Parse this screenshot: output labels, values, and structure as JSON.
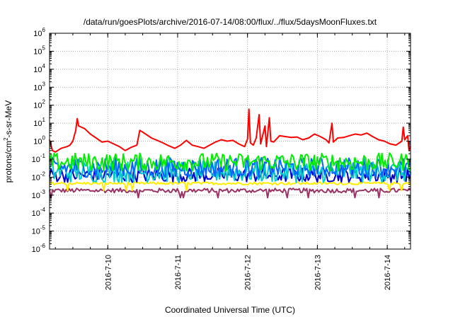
{
  "chart_data": {
    "type": "line",
    "title": "/data/run/goesPlots/archive/2016-07-14/08:00/flux/../flux/5daysMoonFluxes.txt",
    "xlabel": "Coordinated Universal Time (UTC)",
    "ylabel": "protons/cm2-s-sr-MeV",
    "ylabel_parts": {
      "prefix": "protons/cm",
      "sup": "2",
      "suffix": "-s-sr-MeV"
    },
    "xscale": "time",
    "yscale": "log",
    "xlim": [
      "2016-07-09 04:00",
      "2016-07-14 08:00"
    ],
    "ylim": [
      1e-06,
      1000000.0
    ],
    "grid": true,
    "x_ticks": [
      "2016-7-10",
      "2016-7-11",
      "2016-7-12",
      "2016-7-13",
      "2016-7-14"
    ],
    "x_tick_values": [
      "2016-07-10 00:00",
      "2016-07-11 00:00",
      "2016-07-12 00:00",
      "2016-07-13 00:00",
      "2016-07-14 00:00"
    ],
    "y_ticks": [
      {
        "base": "10",
        "exp": "-6"
      },
      {
        "base": "10",
        "exp": "-5"
      },
      {
        "base": "10",
        "exp": "-4"
      },
      {
        "base": "10",
        "exp": "-3"
      },
      {
        "base": "10",
        "exp": "-2"
      },
      {
        "base": "10",
        "exp": "-1"
      },
      {
        "base": "10",
        "exp": "0"
      },
      {
        "base": "10",
        "exp": "1"
      },
      {
        "base": "10",
        "exp": "2"
      },
      {
        "base": "10",
        "exp": "3"
      },
      {
        "base": "10",
        "exp": "4"
      },
      {
        "base": "10",
        "exp": "5"
      },
      {
        "base": "10",
        "exp": "6"
      }
    ],
    "series": [
      {
        "color": "#ff0000",
        "points": [
          [
            "2016-07-09 04:00",
            1.2
          ],
          [
            "2016-07-09 05:00",
            0.3
          ],
          [
            "2016-07-09 06:00",
            0.25
          ],
          [
            "2016-07-09 08:00",
            0.4
          ],
          [
            "2016-07-09 10:00",
            0.5
          ],
          [
            "2016-07-09 11:00",
            0.6
          ],
          [
            "2016-07-09 12:00",
            1.0
          ],
          [
            "2016-07-09 13:00",
            4.0
          ],
          [
            "2016-07-09 13:30",
            18
          ],
          [
            "2016-07-09 14:00",
            7
          ],
          [
            "2016-07-09 16:00",
            5
          ],
          [
            "2016-07-09 18:00",
            2.5
          ],
          [
            "2016-07-09 20:00",
            1.5
          ],
          [
            "2016-07-09 22:00",
            0.9
          ],
          [
            "2016-07-10 00:00",
            1.0
          ],
          [
            "2016-07-10 02:00",
            0.7
          ],
          [
            "2016-07-10 04:00",
            0.5
          ],
          [
            "2016-07-10 06:00",
            0.3
          ],
          [
            "2016-07-10 08:00",
            0.45
          ],
          [
            "2016-07-10 10:00",
            0.6
          ],
          [
            "2016-07-10 11:00",
            4
          ],
          [
            "2016-07-10 13:00",
            2.5
          ],
          [
            "2016-07-10 15:00",
            1.5
          ],
          [
            "2016-07-10 17:00",
            1.1
          ],
          [
            "2016-07-10 19:00",
            0.8
          ],
          [
            "2016-07-10 21:00",
            0.55
          ],
          [
            "2016-07-10 23:00",
            0.4
          ],
          [
            "2016-07-11 01:00",
            0.6
          ],
          [
            "2016-07-11 03:00",
            1.1
          ],
          [
            "2016-07-11 05:00",
            0.6
          ],
          [
            "2016-07-11 07:00",
            0.5
          ],
          [
            "2016-07-11 09:00",
            0.4
          ],
          [
            "2016-07-11 11:00",
            0.6
          ],
          [
            "2016-07-11 13:00",
            0.9
          ],
          [
            "2016-07-11 15:00",
            1.2
          ],
          [
            "2016-07-11 17:00",
            1.0
          ],
          [
            "2016-07-11 19:00",
            1.1
          ],
          [
            "2016-07-11 21:00",
            0.7
          ],
          [
            "2016-07-11 23:00",
            0.5
          ],
          [
            "2016-07-12 00:00",
            1.3
          ],
          [
            "2016-07-12 00:30",
            60
          ],
          [
            "2016-07-12 01:00",
            0.8
          ],
          [
            "2016-07-12 02:00",
            0.6
          ],
          [
            "2016-07-12 03:00",
            1.5
          ],
          [
            "2016-07-12 04:00",
            30
          ],
          [
            "2016-07-12 04:30",
            0.7
          ],
          [
            "2016-07-12 06:00",
            7
          ],
          [
            "2016-07-12 06:30",
            0.5
          ],
          [
            "2016-07-12 07:30",
            20
          ],
          [
            "2016-07-12 08:00",
            1.0
          ],
          [
            "2016-07-12 09:00",
            0.9
          ],
          [
            "2016-07-12 11:00",
            2.0
          ],
          [
            "2016-07-12 13:00",
            1.8
          ],
          [
            "2016-07-12 15:00",
            1.6
          ],
          [
            "2016-07-12 17:00",
            1.7
          ],
          [
            "2016-07-12 19:00",
            1.2
          ],
          [
            "2016-07-12 21:00",
            1.5
          ],
          [
            "2016-07-12 23:00",
            2.5
          ],
          [
            "2016-07-13 01:00",
            1.8
          ],
          [
            "2016-07-13 03:00",
            1.2
          ],
          [
            "2016-07-13 04:00",
            0.8
          ],
          [
            "2016-07-13 05:00",
            10
          ],
          [
            "2016-07-13 05:30",
            0.9
          ],
          [
            "2016-07-13 07:00",
            1.5
          ],
          [
            "2016-07-13 09:00",
            1.6
          ],
          [
            "2016-07-13 11:00",
            2.0
          ],
          [
            "2016-07-13 13:00",
            2.5
          ],
          [
            "2016-07-13 15:00",
            2.2
          ],
          [
            "2016-07-13 17:00",
            2.8
          ],
          [
            "2016-07-13 19:00",
            1.8
          ],
          [
            "2016-07-13 21:00",
            1.2
          ],
          [
            "2016-07-13 23:00",
            1.0
          ],
          [
            "2016-07-14 01:00",
            0.7
          ],
          [
            "2016-07-14 03:00",
            0.6
          ],
          [
            "2016-07-14 05:00",
            1.0
          ],
          [
            "2016-07-14 05:30",
            6
          ],
          [
            "2016-07-14 06:00",
            1.2
          ],
          [
            "2016-07-14 07:00",
            2.0
          ],
          [
            "2016-07-14 07:30",
            0.3
          ],
          [
            "2016-07-14 08:00",
            0.5
          ]
        ]
      },
      {
        "color": "#00ee00",
        "level": 0.07,
        "spread": 1.0
      },
      {
        "color": "#0066ff",
        "level": 0.035,
        "spread": 1.1
      },
      {
        "color": "#00cccc",
        "level": 0.02,
        "spread": 1.2
      },
      {
        "color": "#0000cc",
        "level": 0.013,
        "spread": 0.8
      },
      {
        "color": "#ffee00",
        "level": 0.0045,
        "spread": 0.15
      },
      {
        "color": "#993366",
        "level": 0.0018,
        "spread": 0.25
      }
    ]
  }
}
